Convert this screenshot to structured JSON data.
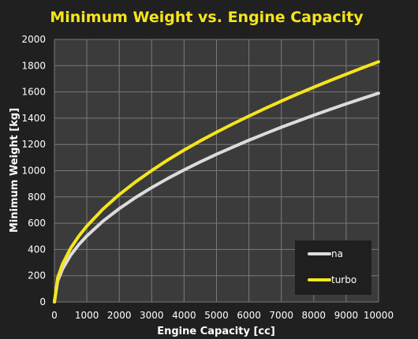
{
  "chart_data": {
    "type": "line",
    "title": "Minimum Weight vs. Engine Capacity",
    "xlabel": "Engine Capacity [cc]",
    "ylabel": "Minimum Weight [kg]",
    "xlim": [
      0,
      10000
    ],
    "ylim": [
      0,
      2000
    ],
    "xticks": [
      "0",
      "1000",
      "2000",
      "3000",
      "4000",
      "5000",
      "6000",
      "7000",
      "8000",
      "9000",
      "10000"
    ],
    "yticks": [
      "0",
      "200",
      "400",
      "600",
      "800",
      "1000",
      "1200",
      "1400",
      "1600",
      "1800",
      "2000"
    ],
    "grid": true,
    "legend_position": "bottom-right",
    "x": [
      0,
      100,
      250,
      500,
      750,
      1000,
      1500,
      2000,
      2500,
      3000,
      3500,
      4000,
      4500,
      5000,
      5500,
      6000,
      6500,
      7000,
      7500,
      8000,
      8500,
      9000,
      9500,
      10000
    ],
    "series": [
      {
        "name": "na",
        "color": "#dcdcdc",
        "values": [
          0,
          159,
          251,
          356,
          436,
          503,
          616,
          711,
          795,
          871,
          941,
          1006,
          1067,
          1125,
          1179,
          1232,
          1282,
          1331,
          1377,
          1423,
          1466,
          1509,
          1550,
          1590
        ]
      },
      {
        "name": "turbo",
        "color": "#f5e51c",
        "values": [
          0,
          183,
          289,
          409,
          501,
          578,
          708,
          818,
          914,
          1001,
          1082,
          1157,
          1227,
          1293,
          1356,
          1416,
          1474,
          1530,
          1584,
          1636,
          1686,
          1735,
          1783,
          1830
        ]
      }
    ]
  },
  "colors": {
    "background": "#202020",
    "plot_area": "#3b3b3b",
    "grid": "#7a7a7a",
    "legend_box": "#1f1f1f"
  }
}
